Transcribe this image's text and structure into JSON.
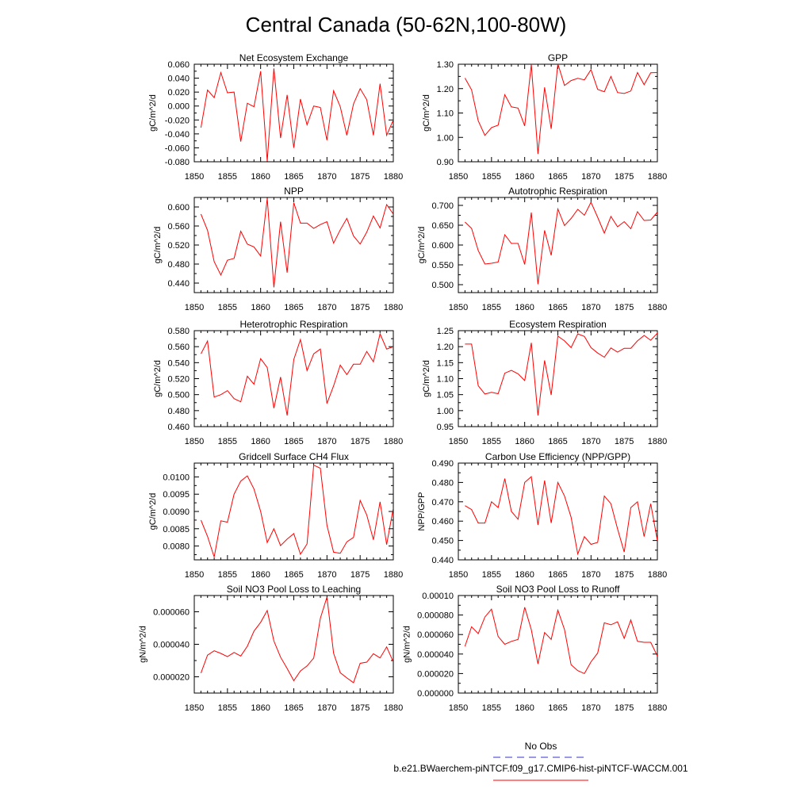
{
  "figure_title": "Central Canada (50-62N,100-80W)",
  "legend": {
    "obs_label": "No Obs",
    "obs_color": "#3333cc",
    "model_label": "b.e21.BWaerchem-piNTCF.f09_g17.CMIP6-hist-piNTCF-WACCM.001",
    "model_color": "#ff0000"
  },
  "chart_data": [
    {
      "type": "line",
      "title": "Net Ecosystem Exchange",
      "ylabel": "gC/m^2/d",
      "xlim": [
        1850,
        1880
      ],
      "ylim": [
        -0.08,
        0.06
      ],
      "xticks": [
        "1850",
        "1855",
        "1860",
        "1865",
        "1870",
        "1875",
        "1880"
      ],
      "yticks": [
        "0.060",
        "0.040",
        "0.020",
        "0.000",
        "-0.020",
        "-0.040",
        "-0.060",
        "-0.080"
      ],
      "ytick_values": [
        0.06,
        0.04,
        0.02,
        0,
        -0.02,
        -0.04,
        -0.06,
        -0.08
      ],
      "x": [
        1851,
        1852,
        1853,
        1854,
        1855,
        1856,
        1857,
        1858,
        1859,
        1860,
        1861,
        1862,
        1863,
        1864,
        1865,
        1866,
        1867,
        1868,
        1869,
        1870,
        1871,
        1872,
        1873,
        1874,
        1875,
        1876,
        1877,
        1878,
        1879,
        1880
      ],
      "series": [
        {
          "values": [
            -0.031,
            0.023,
            0.012,
            0.048,
            0.019,
            0.02,
            -0.051,
            0.004,
            -0.001,
            0.05,
            -0.079,
            0.054,
            -0.046,
            0.016,
            -0.06,
            0.01,
            -0.027,
            0.0,
            -0.002,
            -0.049,
            0.022,
            -0.001,
            -0.042,
            0.003,
            0.025,
            0.009,
            -0.042,
            0.032,
            -0.042,
            -0.02
          ]
        }
      ]
    },
    {
      "type": "line",
      "title": "GPP",
      "ylabel": "gC/m^2/d",
      "xlim": [
        1850,
        1880
      ],
      "ylim": [
        0.9,
        1.3
      ],
      "xticks": [
        "1850",
        "1855",
        "1860",
        "1865",
        "1870",
        "1875",
        "1880"
      ],
      "yticks": [
        "1.30",
        "1.20",
        "1.10",
        "1.00",
        "0.90"
      ],
      "ytick_values": [
        1.3,
        1.2,
        1.1,
        1.0,
        0.9
      ],
      "x": [
        1851,
        1852,
        1853,
        1854,
        1855,
        1856,
        1857,
        1858,
        1859,
        1860,
        1861,
        1862,
        1863,
        1864,
        1865,
        1866,
        1867,
        1868,
        1869,
        1870,
        1871,
        1872,
        1873,
        1874,
        1875,
        1876,
        1877,
        1878,
        1879,
        1880
      ],
      "series": [
        {
          "values": [
            1.243,
            1.195,
            1.068,
            1.008,
            1.04,
            1.05,
            1.175,
            1.125,
            1.12,
            1.047,
            1.3,
            0.932,
            1.205,
            1.035,
            1.302,
            1.213,
            1.233,
            1.242,
            1.236,
            1.278,
            1.197,
            1.187,
            1.25,
            1.184,
            1.18,
            1.19,
            1.266,
            1.216,
            1.265,
            1.266
          ]
        }
      ]
    },
    {
      "type": "line",
      "title": "NPP",
      "ylabel": "gC/m^2/d",
      "xlim": [
        1850,
        1880
      ],
      "ylim": [
        0.42,
        0.62
      ],
      "xticks": [
        "1850",
        "1855",
        "1860",
        "1865",
        "1870",
        "1875",
        "1880"
      ],
      "yticks": [
        "0.600",
        "0.560",
        "0.520",
        "0.480",
        "0.440"
      ],
      "ytick_values": [
        0.6,
        0.56,
        0.52,
        0.48,
        0.44
      ],
      "x": [
        1851,
        1852,
        1853,
        1854,
        1855,
        1856,
        1857,
        1858,
        1859,
        1860,
        1861,
        1862,
        1863,
        1864,
        1865,
        1866,
        1867,
        1868,
        1869,
        1870,
        1871,
        1872,
        1873,
        1874,
        1875,
        1876,
        1877,
        1878,
        1879,
        1880
      ],
      "series": [
        {
          "values": [
            0.585,
            0.551,
            0.485,
            0.457,
            0.488,
            0.492,
            0.549,
            0.522,
            0.516,
            0.497,
            0.618,
            0.431,
            0.569,
            0.462,
            0.609,
            0.566,
            0.566,
            0.555,
            0.563,
            0.569,
            0.524,
            0.552,
            0.576,
            0.539,
            0.522,
            0.547,
            0.581,
            0.556,
            0.605,
            0.585
          ]
        }
      ]
    },
    {
      "type": "line",
      "title": "Autotrophic Respiration",
      "ylabel": "gC/m^2/d",
      "xlim": [
        1850,
        1880
      ],
      "ylim": [
        0.48,
        0.72
      ],
      "xticks": [
        "1850",
        "1855",
        "1860",
        "1865",
        "1870",
        "1875",
        "1880"
      ],
      "yticks": [
        "0.700",
        "0.650",
        "0.600",
        "0.550",
        "0.500"
      ],
      "ytick_values": [
        0.7,
        0.65,
        0.6,
        0.55,
        0.5
      ],
      "x": [
        1851,
        1852,
        1853,
        1854,
        1855,
        1856,
        1857,
        1858,
        1859,
        1860,
        1861,
        1862,
        1863,
        1864,
        1865,
        1866,
        1867,
        1868,
        1869,
        1870,
        1871,
        1872,
        1873,
        1874,
        1875,
        1876,
        1877,
        1878,
        1879,
        1880
      ],
      "series": [
        {
          "values": [
            0.658,
            0.642,
            0.586,
            0.552,
            0.554,
            0.557,
            0.626,
            0.604,
            0.604,
            0.551,
            0.682,
            0.501,
            0.637,
            0.574,
            0.691,
            0.649,
            0.667,
            0.69,
            0.675,
            0.708,
            0.67,
            0.63,
            0.672,
            0.646,
            0.659,
            0.641,
            0.684,
            0.662,
            0.663,
            0.683
          ]
        }
      ]
    },
    {
      "type": "line",
      "title": "Heterotrophic Respiration",
      "ylabel": "gC/m^2/d",
      "xlim": [
        1850,
        1880
      ],
      "ylim": [
        0.46,
        0.58
      ],
      "xticks": [
        "1850",
        "1855",
        "1860",
        "1865",
        "1870",
        "1875",
        "1880"
      ],
      "yticks": [
        "0.580",
        "0.560",
        "0.540",
        "0.520",
        "0.500",
        "0.480",
        "0.460"
      ],
      "ytick_values": [
        0.58,
        0.56,
        0.54,
        0.52,
        0.5,
        0.48,
        0.46
      ],
      "x": [
        1851,
        1852,
        1853,
        1854,
        1855,
        1856,
        1857,
        1858,
        1859,
        1860,
        1861,
        1862,
        1863,
        1864,
        1865,
        1866,
        1867,
        1868,
        1869,
        1870,
        1871,
        1872,
        1873,
        1874,
        1875,
        1876,
        1877,
        1878,
        1879,
        1880
      ],
      "series": [
        {
          "values": [
            0.551,
            0.567,
            0.497,
            0.5,
            0.505,
            0.495,
            0.491,
            0.523,
            0.513,
            0.545,
            0.534,
            0.483,
            0.522,
            0.474,
            0.544,
            0.569,
            0.53,
            0.551,
            0.557,
            0.489,
            0.511,
            0.537,
            0.525,
            0.538,
            0.538,
            0.554,
            0.541,
            0.576,
            0.557,
            0.56
          ]
        }
      ]
    },
    {
      "type": "line",
      "title": "Ecosystem Respiration",
      "ylabel": "gC/m^2/d",
      "xlim": [
        1850,
        1880
      ],
      "ylim": [
        0.95,
        1.25
      ],
      "xticks": [
        "1850",
        "1855",
        "1860",
        "1865",
        "1870",
        "1875",
        "1880"
      ],
      "yticks": [
        "1.25",
        "1.20",
        "1.15",
        "1.10",
        "1.05",
        "1.00",
        "0.95"
      ],
      "ytick_values": [
        1.25,
        1.2,
        1.15,
        1.1,
        1.05,
        1.0,
        0.95
      ],
      "x": [
        1851,
        1852,
        1853,
        1854,
        1855,
        1856,
        1857,
        1858,
        1859,
        1860,
        1861,
        1862,
        1863,
        1864,
        1865,
        1866,
        1867,
        1868,
        1869,
        1870,
        1871,
        1872,
        1873,
        1874,
        1875,
        1876,
        1877,
        1878,
        1879,
        1880
      ],
      "series": [
        {
          "values": [
            1.208,
            1.208,
            1.078,
            1.052,
            1.057,
            1.053,
            1.117,
            1.126,
            1.115,
            1.094,
            1.212,
            0.985,
            1.157,
            1.049,
            1.233,
            1.218,
            1.197,
            1.24,
            1.232,
            1.197,
            1.18,
            1.167,
            1.196,
            1.183,
            1.195,
            1.195,
            1.218,
            1.235,
            1.22,
            1.242
          ]
        }
      ]
    },
    {
      "type": "line",
      "title": "Gridcell Surface CH4 Flux",
      "ylabel": "gC/m^2/d",
      "xlim": [
        1850,
        1880
      ],
      "ylim": [
        0.0076,
        0.0104
      ],
      "xticks": [
        "1850",
        "1855",
        "1860",
        "1865",
        "1870",
        "1875",
        "1880"
      ],
      "yticks": [
        "0.0100",
        "0.0095",
        "0.0090",
        "0.0085",
        "0.0080"
      ],
      "ytick_values": [
        0.01,
        0.0095,
        0.009,
        0.0085,
        0.008
      ],
      "x": [
        1851,
        1852,
        1853,
        1854,
        1855,
        1856,
        1857,
        1858,
        1859,
        1860,
        1861,
        1862,
        1863,
        1864,
        1865,
        1866,
        1867,
        1868,
        1869,
        1870,
        1871,
        1872,
        1873,
        1874,
        1875,
        1876,
        1877,
        1878,
        1879,
        1880
      ],
      "series": [
        {
          "values": [
            0.00875,
            0.00828,
            0.00768,
            0.00873,
            0.00869,
            0.0095,
            0.00988,
            0.01003,
            0.00965,
            0.009,
            0.0081,
            0.0085,
            0.00801,
            0.0082,
            0.00836,
            0.00776,
            0.00806,
            0.01034,
            0.01025,
            0.0086,
            0.00782,
            0.00779,
            0.00812,
            0.00825,
            0.00932,
            0.0089,
            0.00818,
            0.00928,
            0.00804,
            0.0091
          ]
        }
      ]
    },
    {
      "type": "line",
      "title": "Carbon Use Efficiency (NPP/GPP)",
      "ylabel": "NPP/GPP",
      "xlim": [
        1850,
        1880
      ],
      "ylim": [
        0.44,
        0.49
      ],
      "xticks": [
        "1850",
        "1855",
        "1860",
        "1865",
        "1870",
        "1875",
        "1880"
      ],
      "yticks": [
        "0.490",
        "0.480",
        "0.470",
        "0.460",
        "0.450",
        "0.440"
      ],
      "ytick_values": [
        0.49,
        0.48,
        0.47,
        0.46,
        0.45,
        0.44
      ],
      "x": [
        1851,
        1852,
        1853,
        1854,
        1855,
        1856,
        1857,
        1858,
        1859,
        1860,
        1861,
        1862,
        1863,
        1864,
        1865,
        1866,
        1867,
        1868,
        1869,
        1870,
        1871,
        1872,
        1873,
        1874,
        1875,
        1876,
        1877,
        1878,
        1879,
        1880
      ],
      "series": [
        {
          "values": [
            0.468,
            0.466,
            0.459,
            0.459,
            0.47,
            0.467,
            0.482,
            0.465,
            0.461,
            0.48,
            0.483,
            0.458,
            0.481,
            0.459,
            0.48,
            0.473,
            0.462,
            0.443,
            0.452,
            0.448,
            0.449,
            0.473,
            0.469,
            0.456,
            0.444,
            0.467,
            0.47,
            0.452,
            0.469,
            0.45
          ]
        }
      ]
    },
    {
      "type": "line",
      "title": "Soil NO3 Pool Loss to Leaching",
      "ylabel": "gN/m^2/d",
      "xlim": [
        1850,
        1880
      ],
      "ylim": [
        1e-05,
        7e-05
      ],
      "xticks": [
        "1850",
        "1855",
        "1860",
        "1865",
        "1870",
        "1875",
        "1880"
      ],
      "yticks": [
        "0.000060",
        "0.000040",
        "0.000020"
      ],
      "ytick_values": [
        6e-05,
        4e-05,
        2e-05
      ],
      "x": [
        1851,
        1852,
        1853,
        1854,
        1855,
        1856,
        1857,
        1858,
        1859,
        1860,
        1861,
        1862,
        1863,
        1864,
        1865,
        1866,
        1867,
        1868,
        1869,
        1870,
        1871,
        1872,
        1873,
        1874,
        1875,
        1876,
        1877,
        1878,
        1879,
        1880
      ],
      "series": [
        {
          "values": [
            2.23e-05,
            3.33e-05,
            3.6e-05,
            3.44e-05,
            3.24e-05,
            3.5e-05,
            3.28e-05,
            3.88e-05,
            4.81e-05,
            5.35e-05,
            6.08e-05,
            4.2e-05,
            3.21e-05,
            2.51e-05,
            1.76e-05,
            2.36e-05,
            2.67e-05,
            3.15e-05,
            5.6e-05,
            6.9e-05,
            3.45e-05,
            2.25e-05,
            1.93e-05,
            1.64e-05,
            2.83e-05,
            2.9e-05,
            3.42e-05,
            3.16e-05,
            3.84e-05,
            2.91e-05
          ]
        }
      ]
    },
    {
      "type": "line",
      "title": "Soil NO3 Pool Loss to Runoff",
      "ylabel": "gN/m^2/d",
      "xlim": [
        1850,
        1880
      ],
      "ylim": [
        0,
        0.0001
      ],
      "xticks": [
        "1850",
        "1855",
        "1860",
        "1865",
        "1870",
        "1875",
        "1880"
      ],
      "yticks": [
        "0.00010",
        "0.000080",
        "0.000060",
        "0.000040",
        "0.000020",
        "0.000000"
      ],
      "ytick_values": [
        0.0001,
        8e-05,
        6e-05,
        4e-05,
        2e-05,
        0
      ],
      "x": [
        1851,
        1852,
        1853,
        1854,
        1855,
        1856,
        1857,
        1858,
        1859,
        1860,
        1861,
        1862,
        1863,
        1864,
        1865,
        1866,
        1867,
        1868,
        1869,
        1870,
        1871,
        1872,
        1873,
        1874,
        1875,
        1876,
        1877,
        1878,
        1879,
        1880
      ],
      "series": [
        {
          "values": [
            4.8e-05,
            6.8e-05,
            6.1e-05,
            7.8e-05,
            8.6e-05,
            5.8e-05,
            5e-05,
            5.3e-05,
            5.5e-05,
            8.8e-05,
            6.5e-05,
            3e-05,
            6.2e-05,
            5.5e-05,
            8.5e-05,
            6.5e-05,
            2.9e-05,
            2.3e-05,
            2e-05,
            3.2e-05,
            4.1e-05,
            7.2e-05,
            7e-05,
            7.3e-05,
            5.6e-05,
            7.5e-05,
            5.3e-05,
            5.2e-05,
            5.2e-05,
            3.8e-05
          ]
        }
      ]
    }
  ]
}
